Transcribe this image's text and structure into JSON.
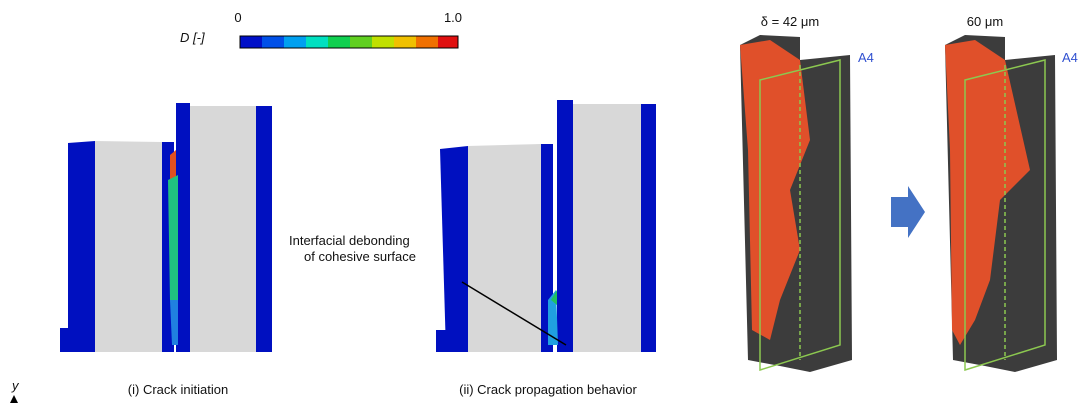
{
  "colorbar": {
    "label": "D [-]",
    "min_label": "0",
    "max_label": "1.0"
  },
  "panels": [
    {
      "caption": "(i) Crack initiation"
    },
    {
      "caption": "(ii) Crack propagation behavior",
      "annotation": [
        "Interfacial debonding",
        "of cohesive surface"
      ]
    }
  ],
  "right": {
    "labels": [
      "δ = 42 μm",
      "60 μm"
    ],
    "plane_labels": [
      "A4",
      "A4"
    ]
  },
  "axis_label": "y"
}
